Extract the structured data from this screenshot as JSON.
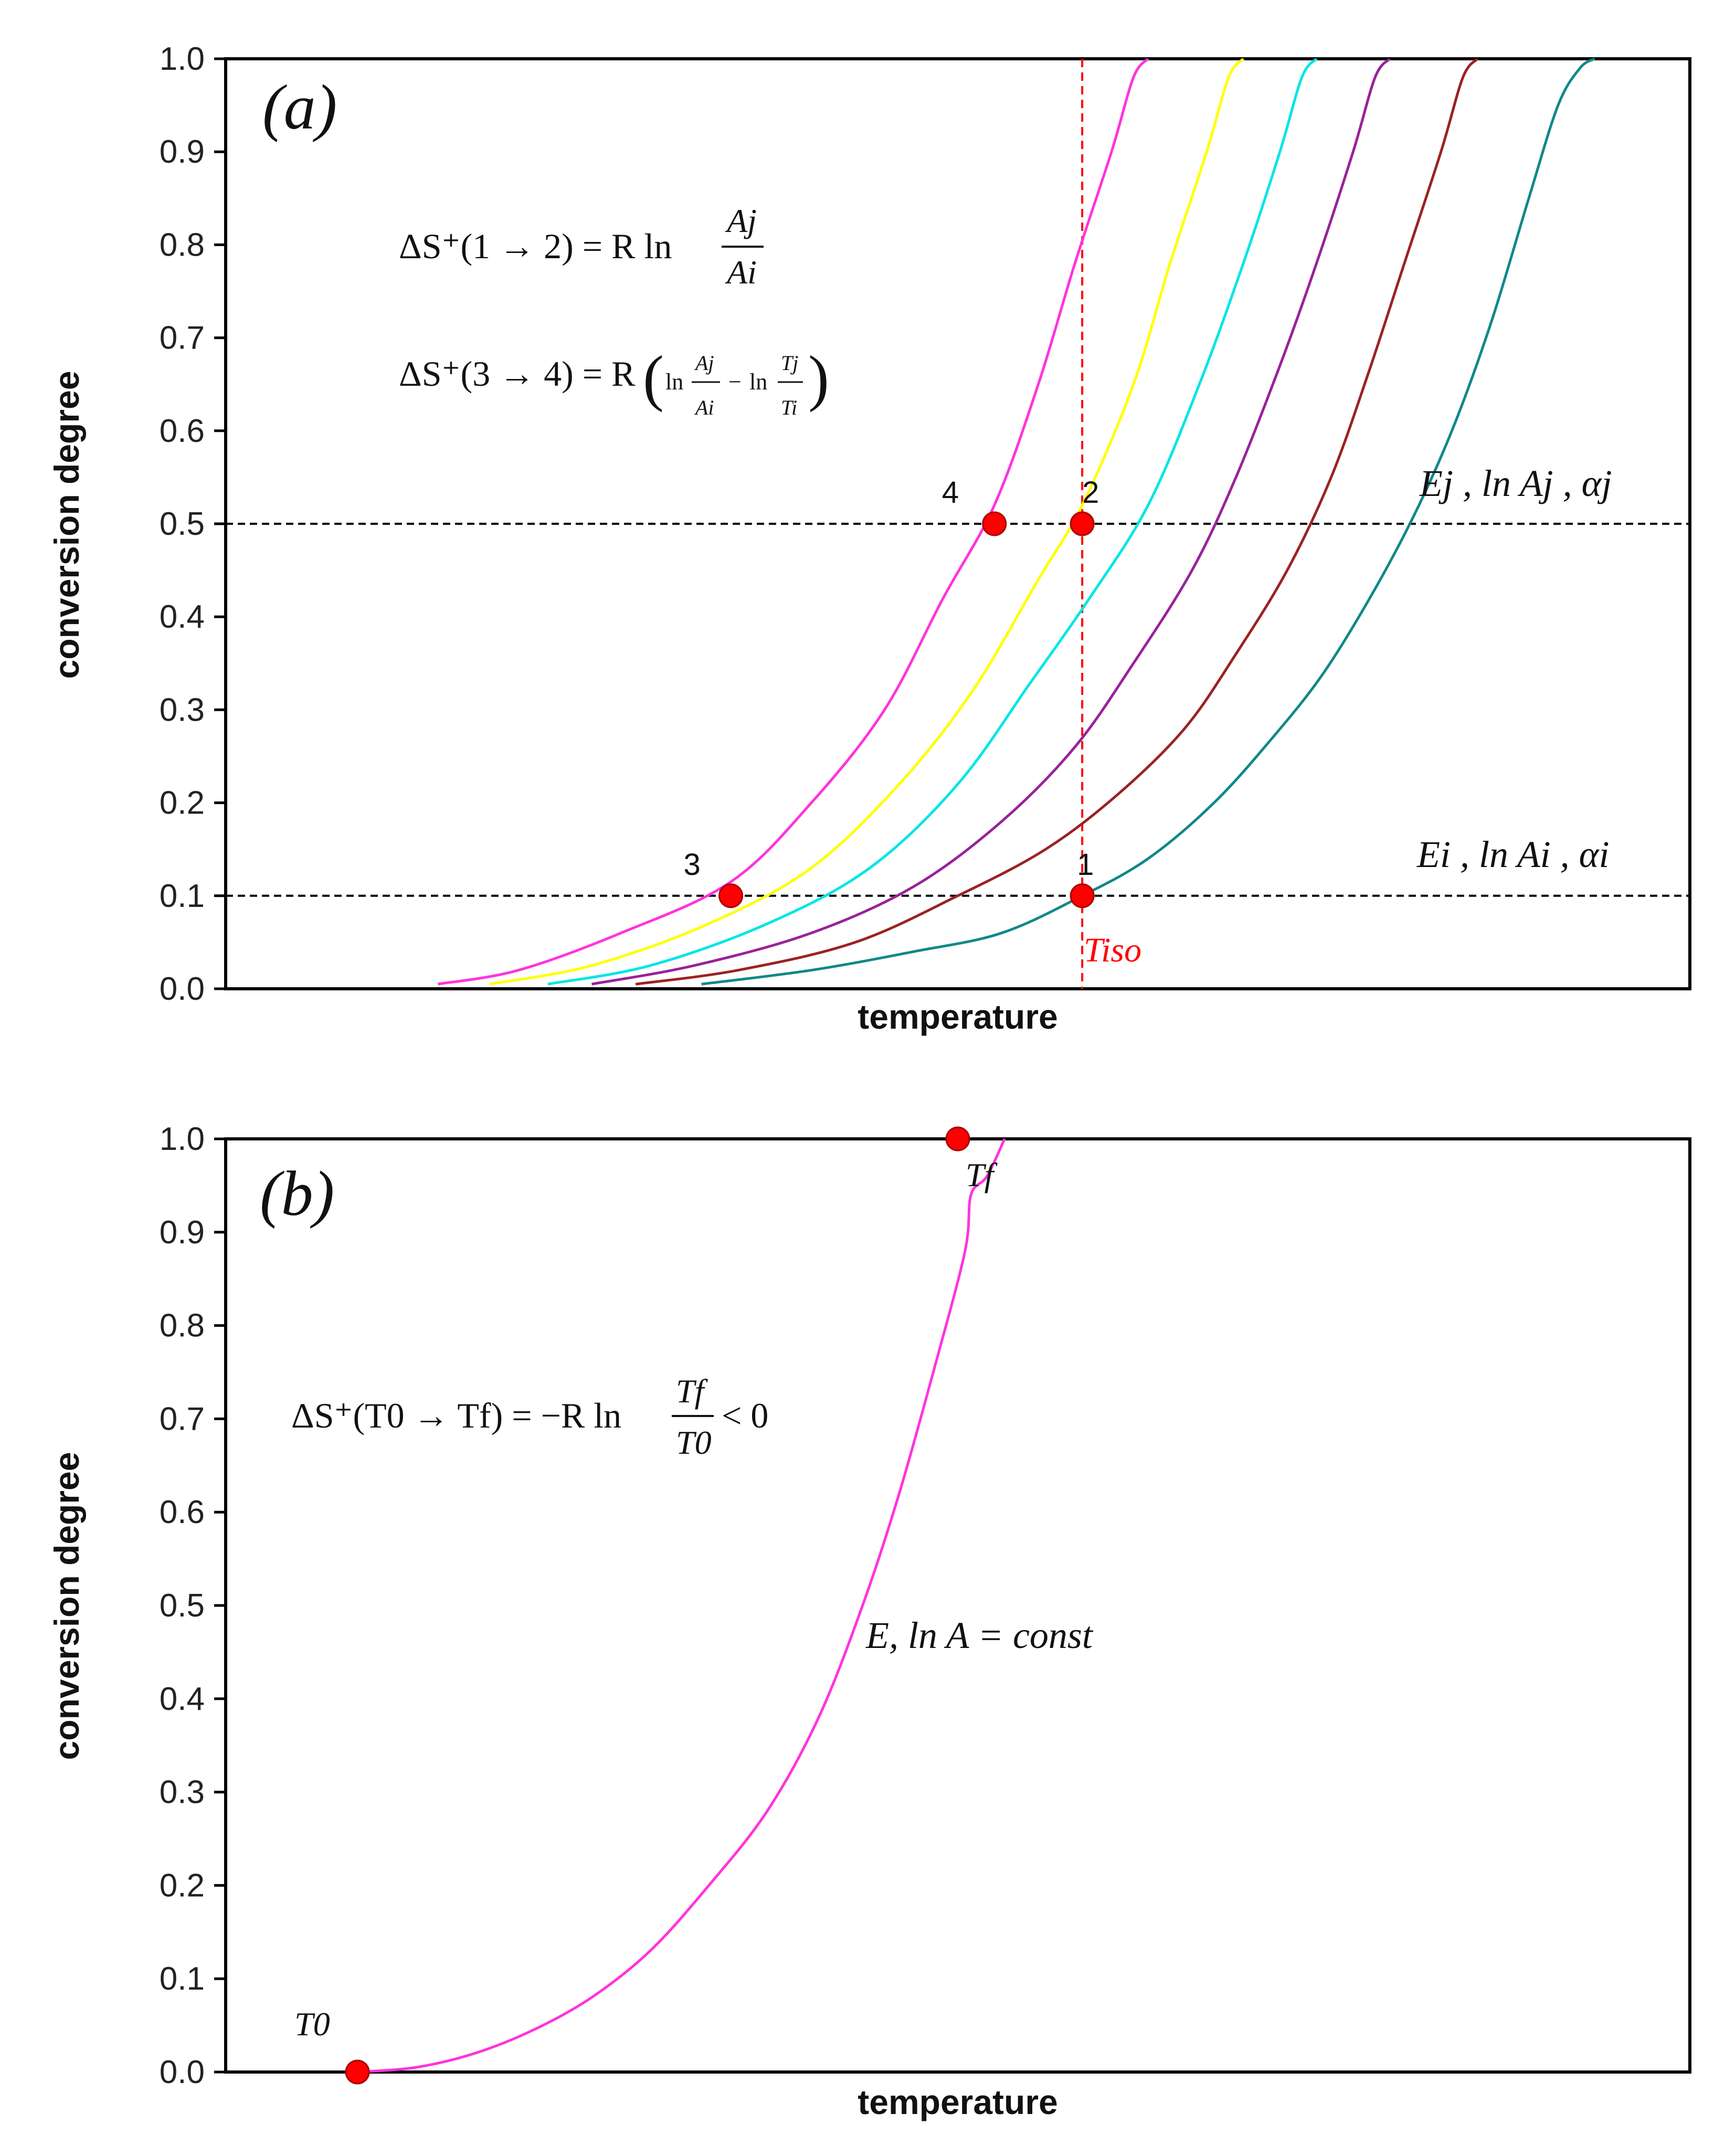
{
  "chart_data": [
    {
      "id": "a",
      "type": "line",
      "panel_label": "(a)",
      "xlabel": "temperature",
      "ylabel": "conversion degree",
      "ylim": [
        0.0,
        1.0
      ],
      "xlim": [
        0,
        100
      ],
      "yticks": [
        "0.0",
        "0.1",
        "0.2",
        "0.3",
        "0.4",
        "0.5",
        "0.6",
        "0.7",
        "0.8",
        "0.9",
        "1.0"
      ],
      "series": [
        {
          "name": "magenta",
          "color": "#ff33dd",
          "points": [
            [
              14.5,
              0.005
            ],
            [
              20,
              0.02
            ],
            [
              27,
              0.06
            ],
            [
              34.5,
              0.115
            ],
            [
              40,
              0.2
            ],
            [
              45,
              0.3
            ],
            [
              49,
              0.42
            ],
            [
              52.5,
              0.52
            ],
            [
              55.5,
              0.65
            ],
            [
              58,
              0.78
            ],
            [
              60.5,
              0.9
            ],
            [
              62,
              0.98
            ],
            [
              63,
              1.0
            ]
          ]
        },
        {
          "name": "yellow",
          "color": "#ffff00",
          "points": [
            [
              18,
              0.005
            ],
            [
              25,
              0.025
            ],
            [
              33,
              0.07
            ],
            [
              40,
              0.13
            ],
            [
              46,
              0.22
            ],
            [
              51,
              0.32
            ],
            [
              55.5,
              0.44
            ],
            [
              58.5,
              0.52
            ],
            [
              62,
              0.65
            ],
            [
              64.5,
              0.78
            ],
            [
              67,
              0.9
            ],
            [
              68.5,
              0.98
            ],
            [
              69.5,
              1.0
            ]
          ]
        },
        {
          "name": "cyan",
          "color": "#00e5e5",
          "points": [
            [
              22,
              0.005
            ],
            [
              29,
              0.025
            ],
            [
              37,
              0.07
            ],
            [
              44,
              0.13
            ],
            [
              50,
              0.22
            ],
            [
              55,
              0.33
            ],
            [
              59,
              0.42
            ],
            [
              63,
              0.52
            ],
            [
              66.5,
              0.65
            ],
            [
              69.5,
              0.78
            ],
            [
              72,
              0.9
            ],
            [
              73.5,
              0.98
            ],
            [
              74.5,
              1.0
            ]
          ]
        },
        {
          "name": "purple",
          "color": "#992299",
          "points": [
            [
              25,
              0.005
            ],
            [
              32,
              0.025
            ],
            [
              40,
              0.06
            ],
            [
              47,
              0.11
            ],
            [
              53,
              0.18
            ],
            [
              58,
              0.26
            ],
            [
              62,
              0.35
            ],
            [
              66,
              0.45
            ],
            [
              69,
              0.55
            ],
            [
              72,
              0.67
            ],
            [
              74.5,
              0.78
            ],
            [
              77,
              0.9
            ],
            [
              78.5,
              0.98
            ],
            [
              79.5,
              1.0
            ]
          ]
        },
        {
          "name": "brown",
          "color": "#9b2222",
          "points": [
            [
              28,
              0.005
            ],
            [
              35,
              0.02
            ],
            [
              43,
              0.05
            ],
            [
              50,
              0.1
            ],
            [
              56,
              0.15
            ],
            [
              61,
              0.21
            ],
            [
              65.5,
              0.28
            ],
            [
              69,
              0.36
            ],
            [
              72.5,
              0.45
            ],
            [
              75.5,
              0.55
            ],
            [
              78,
              0.66
            ],
            [
              80.5,
              0.78
            ],
            [
              83,
              0.9
            ],
            [
              84.5,
              0.98
            ],
            [
              85.5,
              1.0
            ]
          ]
        },
        {
          "name": "teal",
          "color": "#118888",
          "points": [
            [
              32.5,
              0.005
            ],
            [
              40,
              0.02
            ],
            [
              47,
              0.04
            ],
            [
              53,
              0.06
            ],
            [
              58.5,
              0.1
            ],
            [
              63,
              0.14
            ],
            [
              67.5,
              0.2
            ],
            [
              71.5,
              0.27
            ],
            [
              75,
              0.34
            ],
            [
              78.5,
              0.43
            ],
            [
              81.5,
              0.52
            ],
            [
              84,
              0.61
            ],
            [
              86.5,
              0.72
            ],
            [
              89,
              0.85
            ],
            [
              91,
              0.95
            ],
            [
              92.5,
              0.99
            ],
            [
              93.5,
              1.0
            ]
          ]
        }
      ],
      "hlines": [
        0.1,
        0.5
      ],
      "vline": {
        "x": 58.5,
        "color": "#ff0000"
      },
      "points": [
        {
          "label": "1",
          "x": 58.5,
          "y": 0.1
        },
        {
          "label": "2",
          "x": 58.5,
          "y": 0.5
        },
        {
          "label": "3",
          "x": 34.5,
          "y": 0.1
        },
        {
          "label": "4",
          "x": 52.5,
          "y": 0.5
        }
      ],
      "marker_color": "#ff0000",
      "annotations": {
        "eq1_lhs": "ΔS⁺(1 → 2) = R ln",
        "eq1_num": "Aj",
        "eq1_den": "Ai",
        "eq2_lhs": "ΔS⁺(3 → 4) = R",
        "eq2_ln1": "ln",
        "eq2_num1": "Aj",
        "eq2_den1": "Ai",
        "eq2_minus": "−",
        "eq2_ln2": "ln",
        "eq2_num2": "Tj",
        "eq2_den2": "Ti",
        "label_j": "Ej , ln Aj , αj",
        "label_i": "Ei , ln Ai , αi",
        "t_iso": "Tiso"
      }
    },
    {
      "id": "b",
      "type": "line",
      "panel_label": "(b)",
      "xlabel": "temperature",
      "ylabel": "conversion degree",
      "ylim": [
        0.0,
        1.0
      ],
      "xlim": [
        0,
        100
      ],
      "yticks": [
        "0.0",
        "0.1",
        "0.2",
        "0.3",
        "0.4",
        "0.5",
        "0.6",
        "0.7",
        "0.8",
        "0.9",
        "1.0"
      ],
      "series": [
        {
          "name": "magenta",
          "color": "#ff33dd",
          "points": [
            [
              9,
              0.0
            ],
            [
              13,
              0.005
            ],
            [
              17,
              0.02
            ],
            [
              21,
              0.045
            ],
            [
              25,
              0.08
            ],
            [
              29,
              0.13
            ],
            [
              33,
              0.2
            ],
            [
              37,
              0.28
            ],
            [
              40.5,
              0.38
            ],
            [
              43.5,
              0.5
            ],
            [
              46,
              0.62
            ],
            [
              48.5,
              0.76
            ],
            [
              50.5,
              0.88
            ],
            [
              52,
              0.96
            ],
            [
              50.9,
              0.94
            ],
            [
              53.2,
              1.0
            ]
          ]
        }
      ],
      "points": [
        {
          "label": "T0",
          "x": 9,
          "y": 0.0
        },
        {
          "label": "Tf",
          "x": 50,
          "y": 1.0
        }
      ],
      "marker_color": "#ff0000",
      "annotations": {
        "eq_lhs": "ΔS⁺(T0 → Tf) = −R ln",
        "eq_num": "Tf",
        "eq_den": "T0",
        "eq_rhs": "< 0",
        "const_label": "E, ln A = const",
        "t0": "T0",
        "tf": "Tf"
      }
    }
  ]
}
